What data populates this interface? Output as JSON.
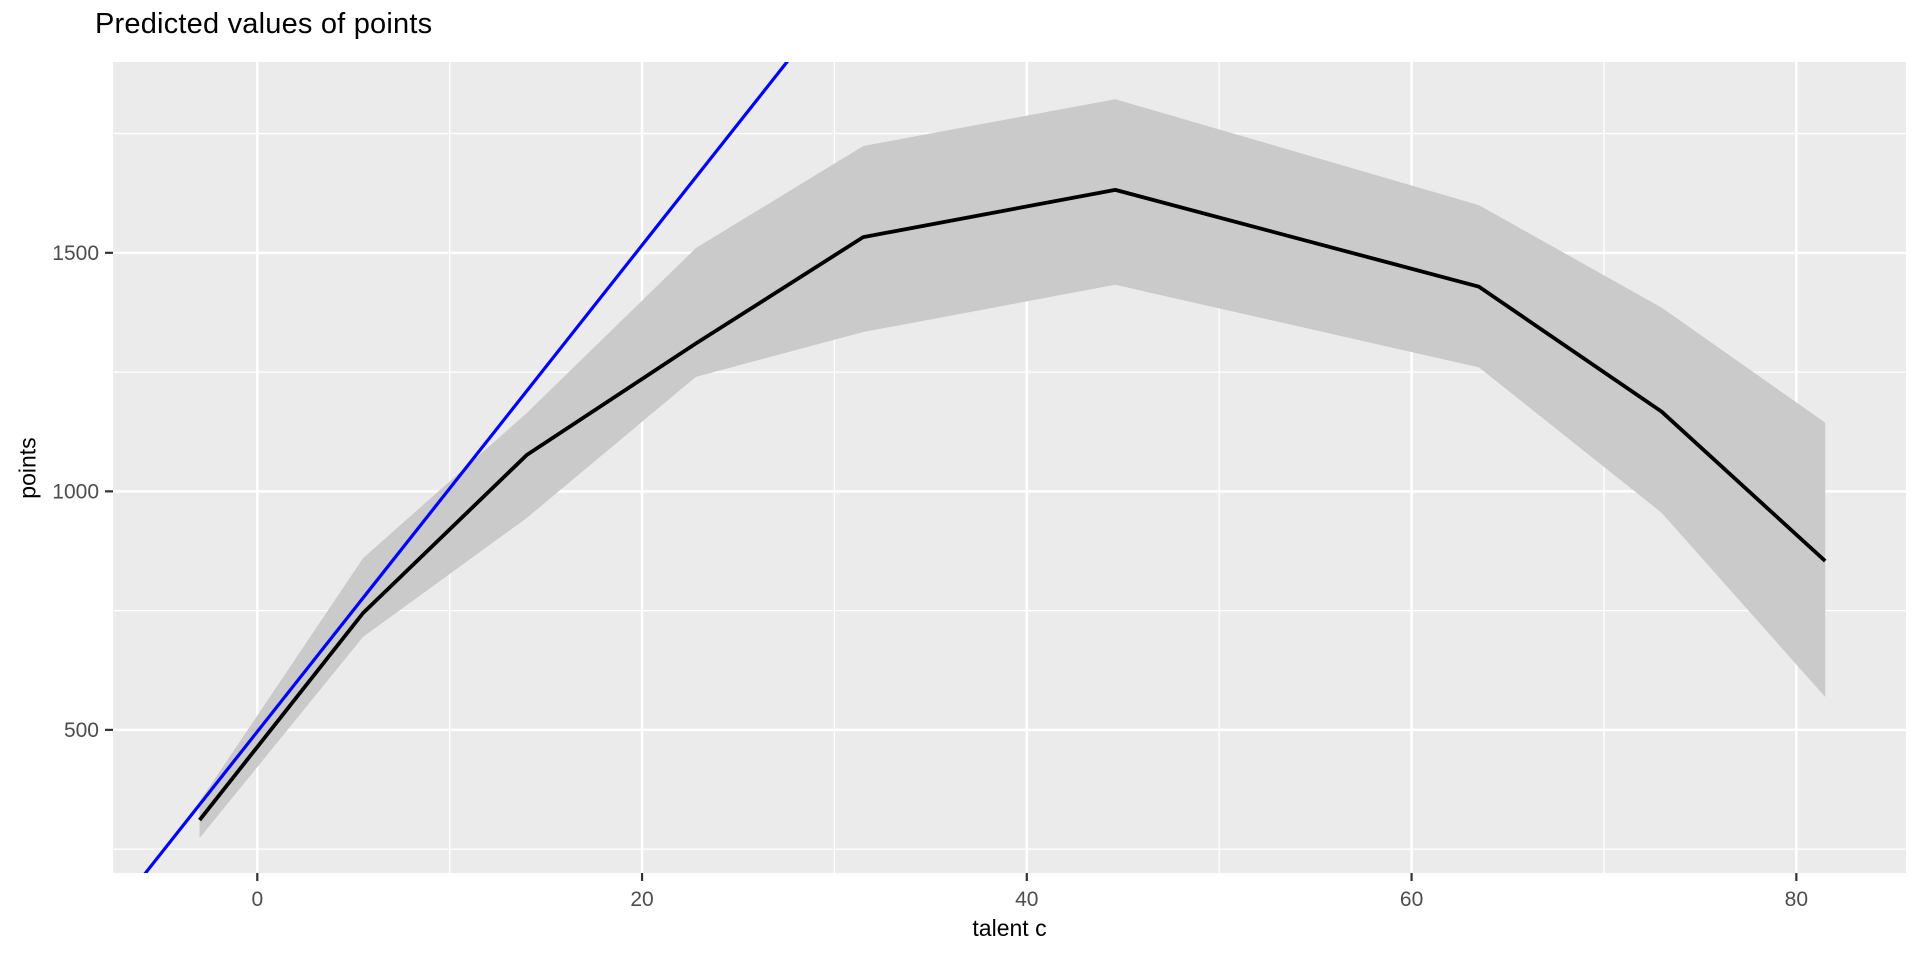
{
  "chart_data": {
    "type": "line",
    "title": "Predicted values of points",
    "xlabel": "talent c",
    "ylabel": "points",
    "xlim": [
      -7.5,
      85.7
    ],
    "ylim": [
      200,
      1900
    ],
    "x_major_ticks": [
      0,
      20,
      40,
      60,
      80
    ],
    "x_minor_ticks": [
      10,
      30,
      50,
      70
    ],
    "y_major_ticks": [
      500,
      1000,
      1500
    ],
    "y_minor_ticks": [
      250,
      750,
      1250,
      1750
    ],
    "grid": "major+minor",
    "legend": "none",
    "ribbon": {
      "name": "confidence-band",
      "color": "#CACACA",
      "x": [
        -3,
        5.5,
        14,
        22.8,
        31.5,
        44.6,
        63.5,
        73,
        81.5
      ],
      "lower": [
        273,
        695,
        944,
        1240,
        1334,
        1433,
        1260,
        955,
        569
      ],
      "upper": [
        350,
        860,
        1164,
        1510,
        1724,
        1822,
        1600,
        1385,
        1144
      ]
    },
    "series": [
      {
        "name": "predicted-points",
        "color": "#000000",
        "width": 3.8,
        "points": [
          [
            -3,
            311
          ],
          [
            5.5,
            745
          ],
          [
            14,
            1076
          ],
          [
            22.8,
            1310
          ],
          [
            31.5,
            1533
          ],
          [
            44.6,
            1632
          ],
          [
            63.5,
            1429
          ],
          [
            73,
            1167
          ],
          [
            81.5,
            854
          ]
        ]
      },
      {
        "name": "linear-reference",
        "color": "#0000FF",
        "width": 3.2,
        "slope": 51,
        "intercept": 496,
        "points": [
          [
            -5.85,
            198
          ],
          [
            27.65,
            1906
          ]
        ]
      }
    ],
    "colors": {
      "panel_bg": "#EBEBEB",
      "grid": "#FFFFFF",
      "tick_mark": "#333333",
      "tick_text": "#4D4D4D",
      "title_text": "#000000"
    }
  }
}
